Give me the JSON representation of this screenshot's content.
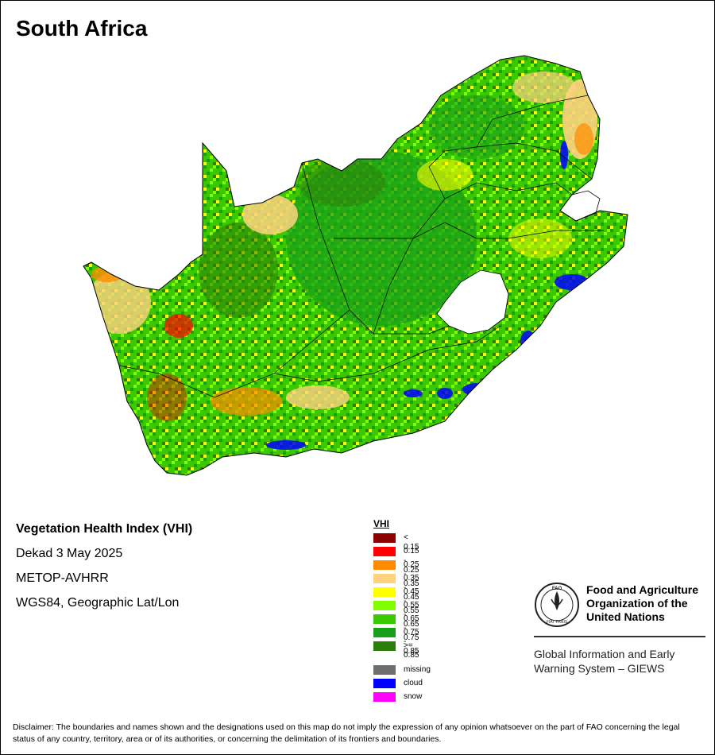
{
  "title": "South Africa",
  "info": {
    "index_name": "Vegetation Health Index (VHI)",
    "period": "Dekad 3 May 2025",
    "sensor": "METOP-AVHRR",
    "projection": "WGS84, Geographic Lat/Lon"
  },
  "legend": {
    "title": "VHI",
    "classes": [
      {
        "label": "< 0.15",
        "color": "#8b0000"
      },
      {
        "label": "0.15 - 0.25",
        "color": "#ff0000"
      },
      {
        "label": "0.25 - 0.35",
        "color": "#ff8c00"
      },
      {
        "label": "0.35 - 0.45",
        "color": "#ffd27f"
      },
      {
        "label": "0.45 - 0.55",
        "color": "#ffff00"
      },
      {
        "label": "0.55 - 0.65",
        "color": "#7fff00"
      },
      {
        "label": "0.65 - 0.75",
        "color": "#3cc800"
      },
      {
        "label": "0.75 - 0.85",
        "color": "#19a019"
      },
      {
        "label": ">= 0.85",
        "color": "#2d7d0a"
      }
    ],
    "extra": [
      {
        "label": "missing",
        "color": "#6e6e6e"
      },
      {
        "label": "cloud",
        "color": "#0000ff"
      },
      {
        "label": "snow",
        "color": "#ff00ff"
      }
    ]
  },
  "org": {
    "name_line1": "Food and Agriculture",
    "name_line2": "Organization of the",
    "name_line3": "United Nations",
    "logo_text": "FAO",
    "motto": "FIAT PANIS",
    "system_line1": "Global Information and Early",
    "system_line2": "Warning System – GIEWS"
  },
  "disclaimer": "Disclaimer: The boundaries and names shown and the designations used on this map do not imply the expression of any opinion whatsoever on the part of FAO concerning the legal status of any country, territory, area or of its authorities, or concerning the delimitation of its frontiers and boundaries."
}
